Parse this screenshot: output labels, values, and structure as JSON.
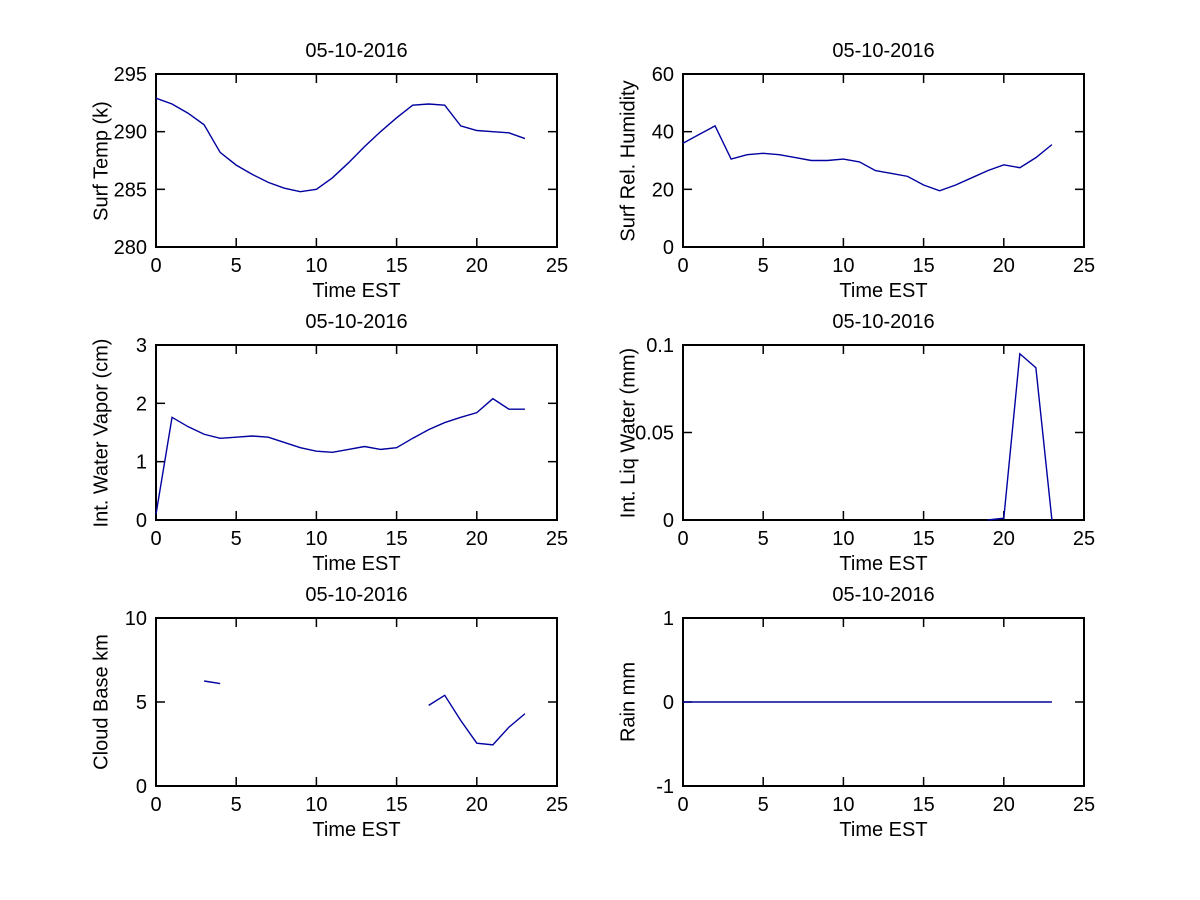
{
  "figure": {
    "background": "#ffffff",
    "axis_color": "#000000",
    "line_color": "#0000A0"
  },
  "chart_data": [
    {
      "type": "line",
      "title": "05-10-2016",
      "xlabel": "Time EST",
      "ylabel": "Surf Temp (k)",
      "xlim": [
        0,
        25
      ],
      "ylim": [
        280,
        295
      ],
      "xticks": [
        0,
        5,
        10,
        15,
        20,
        25
      ],
      "yticks": [
        280,
        285,
        290,
        295
      ],
      "grid": false,
      "legend": null,
      "x": [
        0,
        1,
        2,
        3,
        4,
        5,
        6,
        7,
        8,
        9,
        10,
        11,
        12,
        13,
        14,
        15,
        16,
        17,
        18,
        19,
        20,
        21,
        22,
        23
      ],
      "y": [
        292.9,
        292.4,
        291.6,
        290.6,
        288.2,
        287.1,
        286.3,
        285.6,
        285.1,
        284.8,
        285.0,
        286.0,
        287.3,
        288.7,
        290.0,
        291.2,
        292.3,
        292.4,
        292.3,
        290.5,
        290.1,
        290.0,
        289.9,
        289.4
      ]
    },
    {
      "type": "line",
      "title": "05-10-2016",
      "xlabel": "Time EST",
      "ylabel": "Surf Rel. Humidity",
      "xlim": [
        0,
        25
      ],
      "ylim": [
        0,
        60
      ],
      "xticks": [
        0,
        5,
        10,
        15,
        20,
        25
      ],
      "yticks": [
        0,
        20,
        40,
        60
      ],
      "grid": false,
      "legend": null,
      "x": [
        0,
        1,
        2,
        3,
        4,
        5,
        6,
        7,
        8,
        9,
        10,
        11,
        12,
        13,
        14,
        15,
        16,
        17,
        18,
        19,
        20,
        21,
        22,
        23
      ],
      "y": [
        36,
        39,
        42,
        30.5,
        32,
        32.5,
        32,
        31,
        30,
        30,
        30.5,
        29.5,
        26.5,
        25.5,
        24.5,
        21.5,
        19.5,
        21.5,
        24,
        26.5,
        28.5,
        27.5,
        31,
        35.5
      ]
    },
    {
      "type": "line",
      "title": "05-10-2016",
      "xlabel": "Time EST",
      "ylabel": "Int. Water Vapor (cm)",
      "xlim": [
        0,
        25
      ],
      "ylim": [
        0,
        3
      ],
      "xticks": [
        0,
        5,
        10,
        15,
        20,
        25
      ],
      "yticks": [
        0,
        1,
        2,
        3
      ],
      "grid": false,
      "legend": null,
      "x": [
        0,
        1,
        2,
        3,
        4,
        5,
        6,
        7,
        8,
        9,
        10,
        11,
        12,
        13,
        14,
        15,
        16,
        17,
        18,
        19,
        20,
        21,
        22,
        23
      ],
      "y": [
        0.1,
        1.76,
        1.6,
        1.47,
        1.4,
        1.42,
        1.44,
        1.42,
        1.33,
        1.24,
        1.18,
        1.16,
        1.21,
        1.26,
        1.21,
        1.24,
        1.4,
        1.55,
        1.67,
        1.76,
        1.84,
        2.08,
        1.9,
        1.9
      ]
    },
    {
      "type": "line",
      "title": "05-10-2016",
      "xlabel": "Time EST",
      "ylabel": "Int. Liq Water (mm)",
      "xlim": [
        0,
        25
      ],
      "ylim": [
        0,
        0.1
      ],
      "xticks": [
        0,
        5,
        10,
        15,
        20,
        25
      ],
      "yticks": [
        0,
        0.05,
        0.1
      ],
      "grid": false,
      "legend": null,
      "x": [
        0,
        1,
        2,
        3,
        4,
        5,
        6,
        7,
        8,
        9,
        10,
        11,
        12,
        13,
        14,
        15,
        16,
        17,
        18,
        19,
        20,
        21,
        22,
        23
      ],
      "y": [
        null,
        null,
        null,
        null,
        null,
        null,
        null,
        null,
        null,
        null,
        null,
        null,
        null,
        null,
        null,
        null,
        null,
        null,
        null,
        0,
        0.001,
        0.095,
        0.087,
        0
      ]
    },
    {
      "type": "line",
      "title": "05-10-2016",
      "xlabel": "Time EST",
      "ylabel": "Cloud Base km",
      "xlim": [
        0,
        25
      ],
      "ylim": [
        0,
        10
      ],
      "xticks": [
        0,
        5,
        10,
        15,
        20,
        25
      ],
      "yticks": [
        0,
        5,
        10
      ],
      "grid": false,
      "legend": null,
      "x": [
        0,
        1,
        2,
        3,
        4,
        5,
        6,
        7,
        8,
        9,
        10,
        11,
        12,
        13,
        14,
        15,
        16,
        17,
        18,
        19,
        20,
        21,
        22,
        23
      ],
      "y": [
        null,
        null,
        null,
        6.25,
        6.1,
        null,
        null,
        null,
        null,
        null,
        null,
        null,
        null,
        null,
        null,
        null,
        null,
        4.8,
        5.4,
        3.9,
        2.55,
        2.45,
        3.5,
        4.3
      ]
    },
    {
      "type": "line",
      "title": "05-10-2016",
      "xlabel": "Time EST",
      "ylabel": "Rain mm",
      "xlim": [
        0,
        25
      ],
      "ylim": [
        -1,
        1
      ],
      "xticks": [
        0,
        5,
        10,
        15,
        20,
        25
      ],
      "yticks": [
        -1,
        0,
        1
      ],
      "grid": false,
      "legend": null,
      "x": [
        0,
        1,
        2,
        3,
        4,
        5,
        6,
        7,
        8,
        9,
        10,
        11,
        12,
        13,
        14,
        15,
        16,
        17,
        18,
        19,
        20,
        21,
        22,
        23
      ],
      "y": [
        0,
        0,
        0,
        0,
        0,
        0,
        0,
        0,
        0,
        0,
        0,
        0,
        0,
        0,
        0,
        0,
        0,
        0,
        0,
        0,
        0,
        0,
        0,
        0
      ]
    }
  ]
}
